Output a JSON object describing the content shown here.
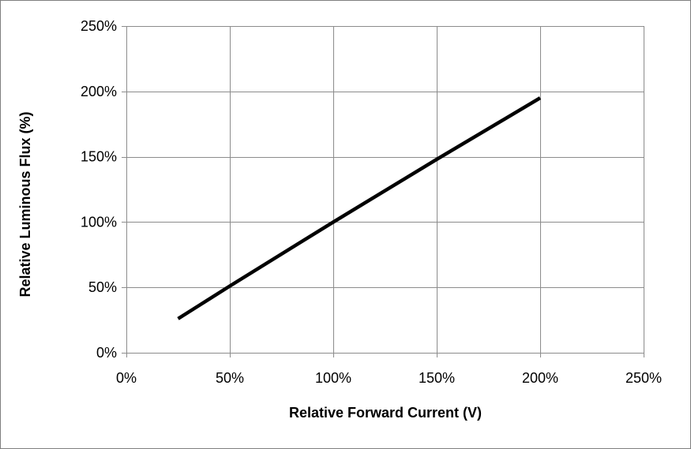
{
  "chart_data": {
    "type": "line",
    "title": "",
    "xlabel": "Relative Forward Current (V)",
    "ylabel": "Relative Luminous Flux (%)",
    "xlim": [
      0,
      250
    ],
    "ylim": [
      0,
      250
    ],
    "x_ticks": [
      0,
      50,
      100,
      150,
      200,
      250
    ],
    "y_ticks": [
      0,
      50,
      100,
      150,
      200,
      250
    ],
    "x_tick_labels": [
      "0%",
      "50%",
      "100%",
      "150%",
      "200%",
      "250%"
    ],
    "y_tick_labels": [
      "0%",
      "50%",
      "100%",
      "150%",
      "200%",
      "250%"
    ],
    "grid": true,
    "legend": "none",
    "series": [
      {
        "color": "#000000",
        "x": [
          25,
          50,
          100,
          150,
          200
        ],
        "y": [
          26,
          51,
          100,
          148,
          195
        ]
      }
    ],
    "colors": {
      "frame": "#7f7f7f",
      "grid": "#8c8c8c",
      "line": "#000000"
    }
  }
}
